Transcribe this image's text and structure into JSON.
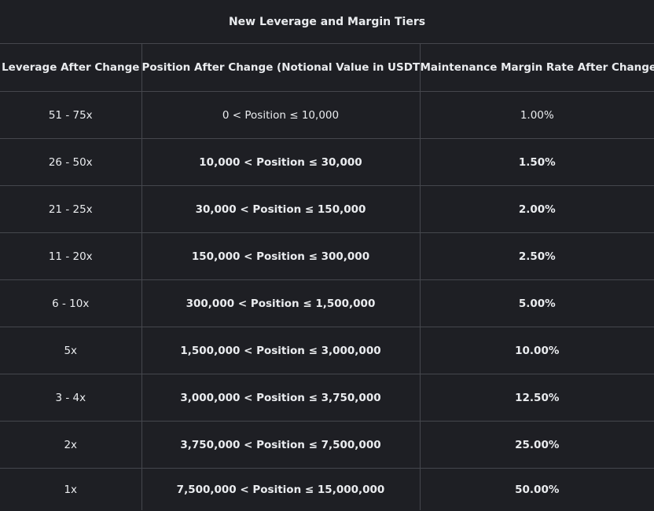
{
  "title": "New Leverage and Margin Tiers",
  "headers": [
    "Leverage After Change",
    "Position After Change (Notional Value in USDT)",
    "Maintenance Margin Rate After Change"
  ],
  "rows": [
    {
      "leverage": "51 - 75x",
      "position": "0 < Position ≤ 10,000",
      "mmr": "1.00%",
      "bold": false
    },
    {
      "leverage": "26 - 50x",
      "position": "10,000 < Position ≤ 30,000",
      "mmr": "1.50%",
      "bold": true
    },
    {
      "leverage": "21 - 25x",
      "position": "30,000 < Position ≤ 150,000",
      "mmr": "2.00%",
      "bold": true
    },
    {
      "leverage": "11 - 20x",
      "position": "150,000 < Position ≤ 300,000",
      "mmr": "2.50%",
      "bold": true
    },
    {
      "leverage": "6 - 10x",
      "position": "300,000 < Position ≤ 1,500,000",
      "mmr": "5.00%",
      "bold": true
    },
    {
      "leverage": "5x",
      "position": "1,500,000 < Position ≤ 3,000,000",
      "mmr": "10.00%",
      "bold": true
    },
    {
      "leverage": "3 - 4x",
      "position": "3,000,000 < Position ≤ 3,750,000",
      "mmr": "12.50%",
      "bold": true
    },
    {
      "leverage": "2x",
      "position": "3,750,000 < Position ≤ 7,500,000",
      "mmr": "25.00%",
      "bold": true
    },
    {
      "leverage": "1x",
      "position": "7,500,000 < Position ≤ 15,000,000",
      "mmr": "50.00%",
      "bold": true
    }
  ],
  "colors": {
    "background": "#1e1f24",
    "border": "#45474d",
    "text": "#eaecef"
  }
}
